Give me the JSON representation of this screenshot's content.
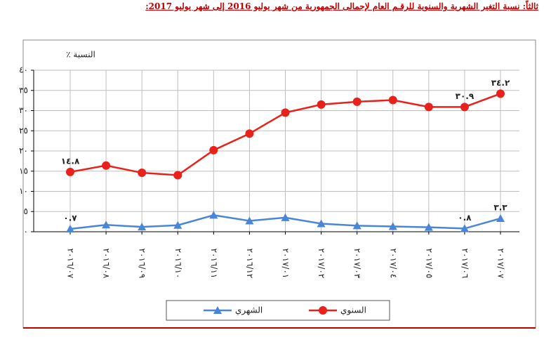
{
  "chart_data": {
    "type": "line",
    "title": "ثالثاً: نسبة التغير الشهرية والسنوية للرقـم العام لإجمالى الجمهورية من شهر يوليو 2016 إلى شهر يوليو 2017:",
    "y_label": "النسبة ٪",
    "categories": [
      "٢٠١٦/٠٧",
      "٢٠١٦/٠٨",
      "٢٠١٦/٠٩",
      "٢٠١٦/١٠",
      "٢٠١٦/١١",
      "٢٠١٦/١٢",
      "٢٠١٧/٠١",
      "٢٠١٧/٠٢",
      "٢٠١٧/٠٣",
      "٢٠١٧/٠٤",
      "٢٠١٧/٠٥",
      "٢٠١٧/٠٦",
      "٢٠١٧/٠٧"
    ],
    "series": [
      {
        "name": "الشهري",
        "color": "#4a86d8",
        "marker": "triangle",
        "values": [
          0.7,
          1.7,
          1.2,
          1.6,
          4.1,
          2.7,
          3.5,
          2.0,
          1.5,
          1.3,
          1.1,
          0.8,
          3.3
        ],
        "value_labels": [
          "٠.٧",
          null,
          null,
          null,
          null,
          null,
          null,
          null,
          null,
          null,
          null,
          "٠.٨",
          "٣.٣"
        ]
      },
      {
        "name": "السنوي",
        "color": "#e8221b",
        "marker": "circle",
        "values": [
          14.8,
          16.4,
          14.6,
          14.0,
          20.2,
          24.3,
          29.5,
          31.5,
          32.2,
          32.6,
          30.9,
          30.9,
          34.2
        ],
        "value_labels": [
          "١٤.٨",
          null,
          null,
          null,
          null,
          null,
          null,
          null,
          null,
          null,
          null,
          "٣٠.٩",
          "٣٤.٢"
        ]
      }
    ],
    "ylim": [
      0,
      40
    ],
    "yticks": [
      {
        "value": 0,
        "label": "٠"
      },
      {
        "value": 5,
        "label": "٥"
      },
      {
        "value": 10,
        "label": "١٠"
      },
      {
        "value": 15,
        "label": "١٥"
      },
      {
        "value": 20,
        "label": "٢٠"
      },
      {
        "value": 25,
        "label": "٢٥"
      },
      {
        "value": 30,
        "label": "٣٠"
      },
      {
        "value": 35,
        "label": "٣٥"
      },
      {
        "value": 40,
        "label": "٤٠"
      }
    ],
    "grid": true
  }
}
